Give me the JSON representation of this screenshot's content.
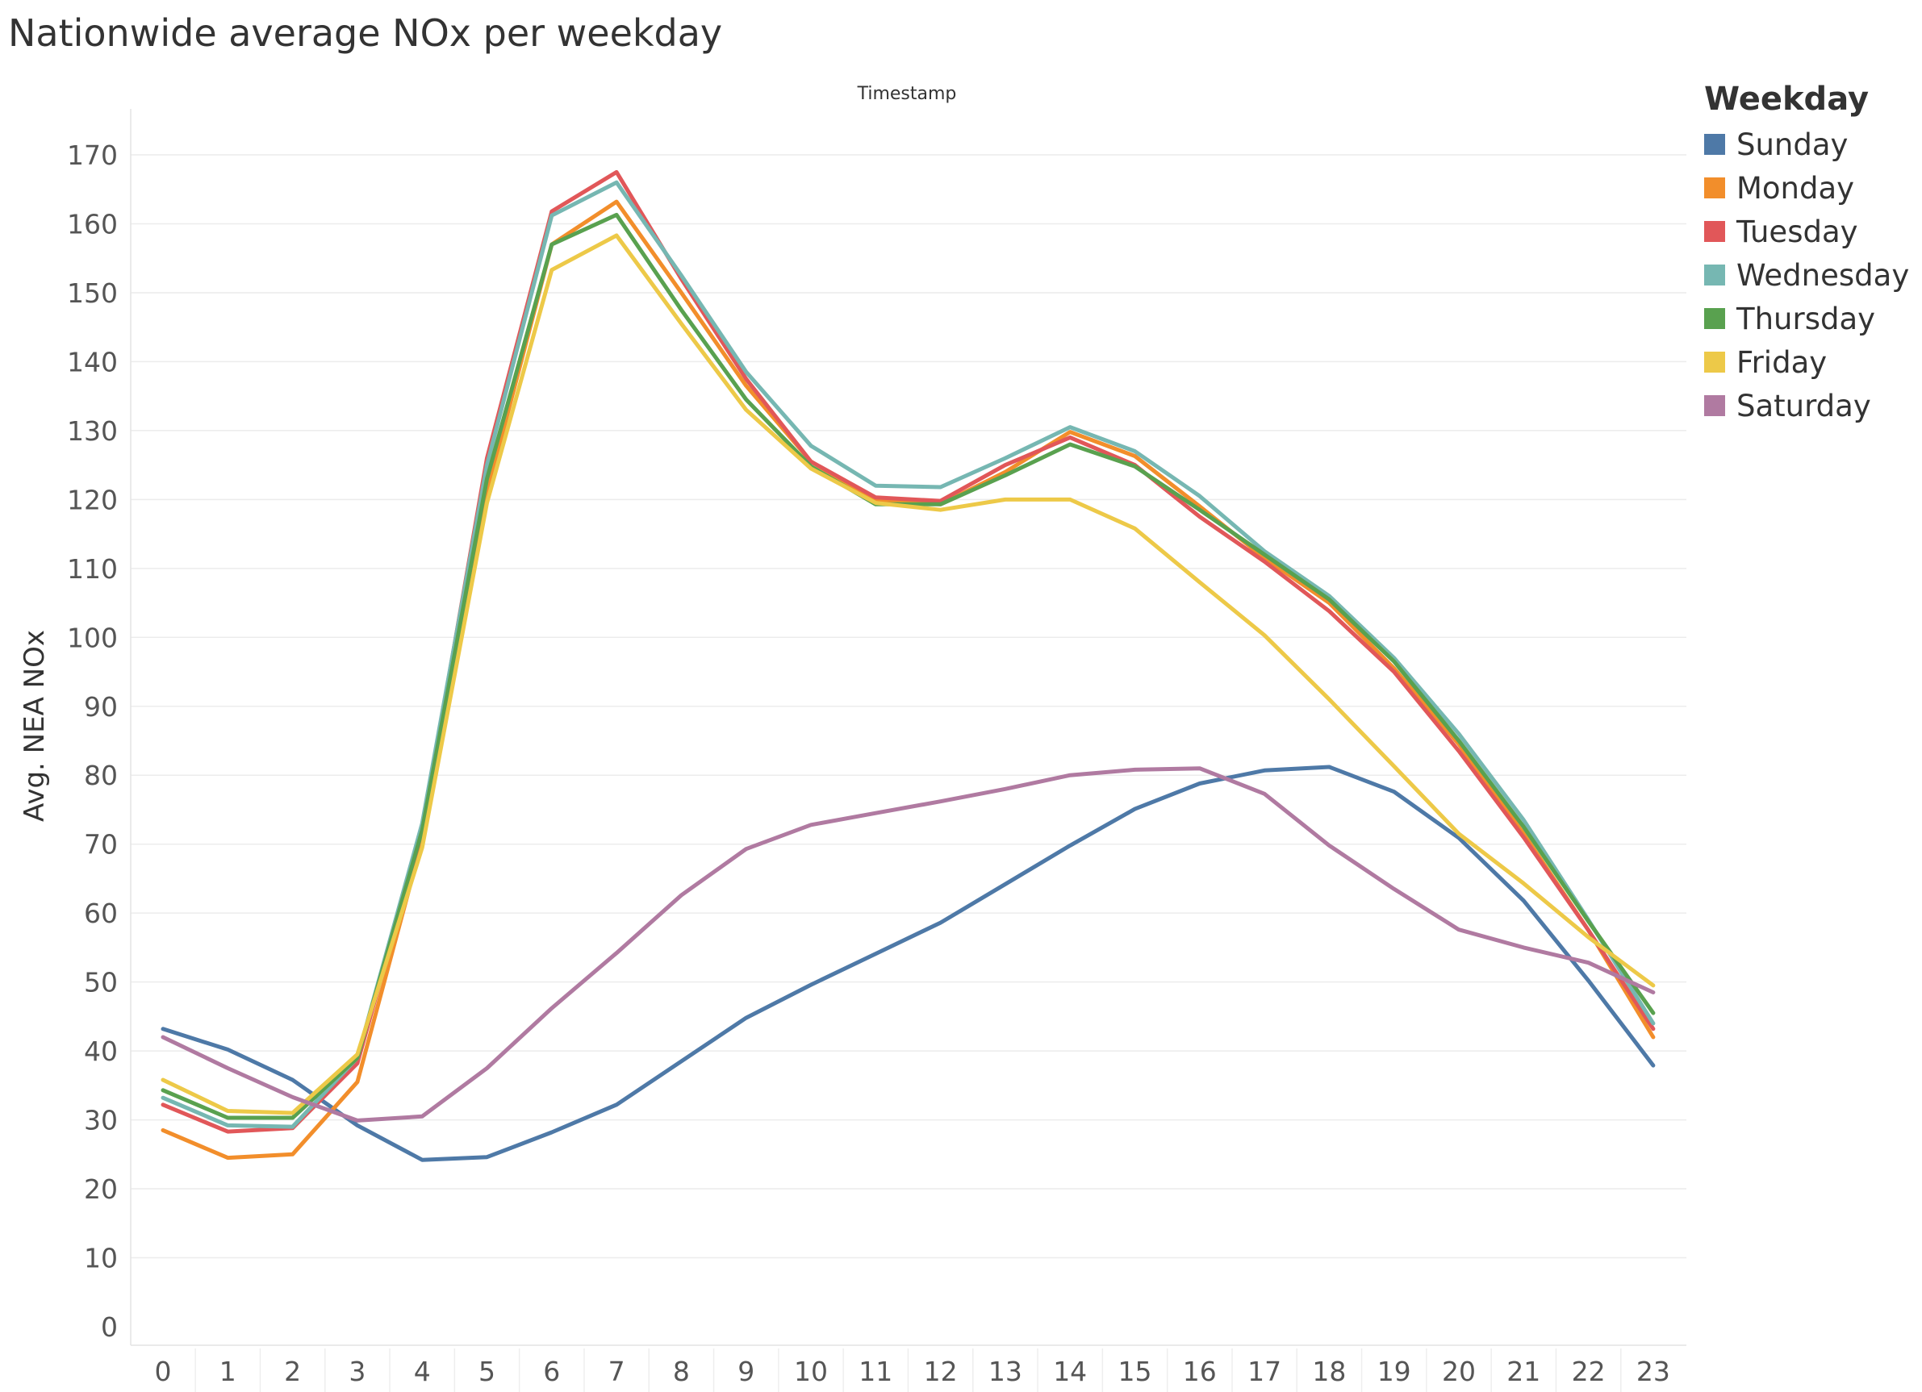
{
  "title": "Nationwide average NOx per weekday",
  "chart_data": {
    "type": "line",
    "top_axis_label": "Timestamp",
    "xlabel": "",
    "ylabel": "Avg. NEA NOx",
    "x": [
      0,
      1,
      2,
      3,
      4,
      5,
      6,
      7,
      8,
      9,
      10,
      11,
      12,
      13,
      14,
      15,
      16,
      17,
      18,
      19,
      20,
      21,
      22,
      23
    ],
    "ylim": [
      0,
      170
    ],
    "yticks": [
      0,
      10,
      20,
      30,
      40,
      50,
      60,
      70,
      80,
      90,
      100,
      110,
      120,
      130,
      140,
      150,
      160,
      170
    ],
    "grid": "horizontal",
    "legend_placement": "right",
    "legend_title": "Weekday",
    "series": [
      {
        "name": "Sunday",
        "color": "#4e79a7",
        "values": [
          43.2,
          40.2,
          35.8,
          29.2,
          24.2,
          24.6,
          28.2,
          32.2,
          38.5,
          44.8,
          49.6,
          54.1,
          58.6,
          64.2,
          69.8,
          75.1,
          78.8,
          80.7,
          81.2,
          77.6,
          70.9,
          61.8,
          50.2,
          37.9
        ]
      },
      {
        "name": "Monday",
        "color": "#f28e2b",
        "values": [
          28.5,
          24.5,
          25.0,
          35.5,
          70.5,
          121.0,
          157.0,
          163.2,
          150.0,
          136.5,
          125.5,
          119.8,
          119.3,
          124.0,
          129.8,
          126.3,
          119.0,
          111.5,
          105.0,
          95.5,
          84.5,
          71.5,
          57.5,
          42.0
        ]
      },
      {
        "name": "Tuesday",
        "color": "#e15759",
        "values": [
          32.2,
          28.3,
          28.8,
          38.2,
          72.0,
          126.0,
          161.8,
          167.5,
          152.0,
          137.5,
          125.5,
          120.3,
          119.8,
          125.0,
          129.0,
          125.0,
          117.5,
          111.0,
          103.8,
          95.0,
          83.5,
          71.0,
          57.5,
          43.2
        ]
      },
      {
        "name": "Wednesday",
        "color": "#76b7b2",
        "values": [
          33.2,
          29.2,
          29.0,
          39.0,
          73.0,
          125.0,
          161.2,
          166.0,
          152.5,
          138.5,
          127.8,
          122.0,
          121.8,
          126.0,
          130.5,
          127.0,
          120.5,
          112.5,
          106.0,
          97.0,
          86.0,
          73.5,
          59.0,
          44.0
        ]
      },
      {
        "name": "Thursday",
        "color": "#59a14f",
        "values": [
          34.3,
          30.3,
          30.3,
          39.0,
          72.0,
          123.0,
          157.0,
          161.3,
          147.5,
          134.5,
          124.8,
          119.3,
          119.3,
          123.5,
          128.0,
          124.8,
          118.5,
          112.0,
          105.5,
          96.5,
          85.0,
          72.5,
          58.8,
          45.5
        ]
      },
      {
        "name": "Friday",
        "color": "#edc948",
        "values": [
          35.8,
          31.3,
          31.0,
          39.5,
          69.5,
          119.5,
          153.3,
          158.3,
          145.5,
          133.0,
          124.5,
          119.5,
          118.5,
          120.0,
          120.0,
          115.8,
          108.0,
          100.3,
          91.0,
          81.3,
          71.5,
          64.3,
          56.5,
          49.5
        ]
      },
      {
        "name": "Saturday",
        "color": "#b07aa1",
        "values": [
          42.0,
          37.5,
          33.3,
          29.9,
          30.5,
          37.5,
          46.2,
          54.2,
          62.6,
          69.3,
          72.8,
          74.5,
          76.2,
          78.0,
          80.0,
          80.8,
          81.0,
          77.3,
          69.8,
          63.5,
          57.6,
          55.0,
          52.8,
          48.5
        ]
      }
    ]
  }
}
